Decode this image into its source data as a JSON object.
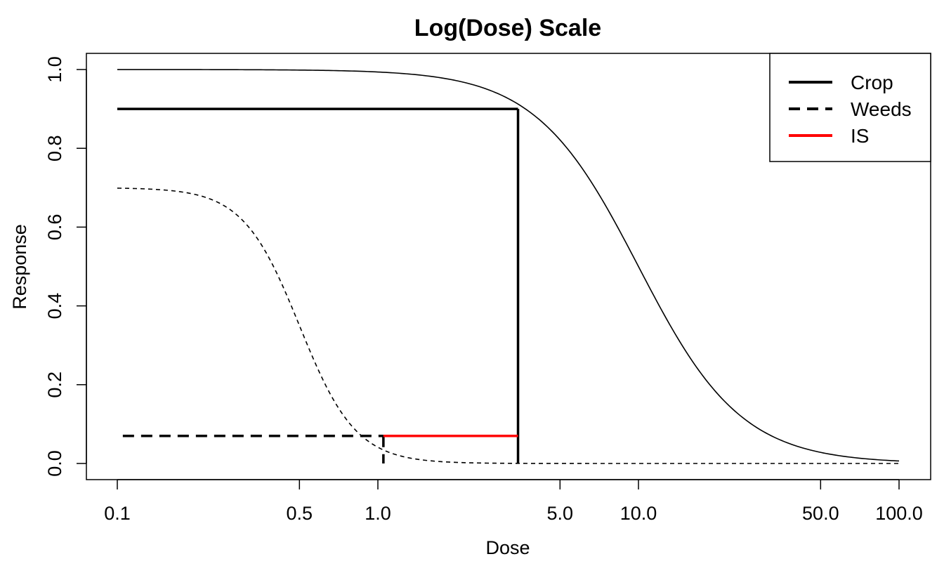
{
  "chart_data": {
    "type": "line",
    "title": "Log(Dose) Scale",
    "xlabel": "Dose",
    "ylabel": "Response",
    "xscale": "log",
    "xlim": [
      0.1,
      100
    ],
    "ylim": [
      0,
      1
    ],
    "xticks": [
      0.1,
      0.5,
      1.0,
      5.0,
      10.0,
      50.0,
      100.0
    ],
    "xtick_labels": [
      "0.1",
      "0.5",
      "1.0",
      "5.0",
      "10.0",
      "50.0",
      "100.0"
    ],
    "yticks": [
      0,
      0.2,
      0.4,
      0.6,
      0.8,
      1.0
    ],
    "ytick_labels": [
      "0.0",
      "0.2",
      "0.4",
      "0.6",
      "0.8",
      "1.0"
    ],
    "grid": false,
    "legend_position": "top-right",
    "legend": [
      {
        "label": "Crop",
        "color": "#000000",
        "style": "solid"
      },
      {
        "label": "Weeds",
        "color": "#000000",
        "style": "dashed"
      },
      {
        "label": "IS",
        "color": "#ff0000",
        "style": "solid"
      }
    ],
    "curves": [
      {
        "name": "Crop",
        "style": "solid",
        "color": "#000000",
        "upper": 1.0,
        "ed50": 10.0,
        "slope": 2.2
      },
      {
        "name": "Weeds",
        "style": "dashed",
        "color": "#000000",
        "upper": 0.7,
        "ed50": 0.5,
        "slope": 4.0
      }
    ],
    "segments": [
      {
        "name": "crop-threshold-horizontal",
        "x": [
          0.1,
          3.45
        ],
        "y": [
          0.9,
          0.9
        ],
        "color": "#000000",
        "style": "solid"
      },
      {
        "name": "crop-threshold-vertical",
        "x": [
          3.45,
          3.45
        ],
        "y": [
          0.9,
          0.0
        ],
        "color": "#000000",
        "style": "solid"
      },
      {
        "name": "weeds-threshold-horizontal",
        "x": [
          0.105,
          1.05
        ],
        "y": [
          0.07,
          0.07
        ],
        "color": "#000000",
        "style": "dashed"
      },
      {
        "name": "weeds-threshold-vertical",
        "x": [
          1.05,
          1.05
        ],
        "y": [
          0.07,
          0.0
        ],
        "color": "#000000",
        "style": "dashed"
      },
      {
        "name": "is-interval",
        "x": [
          1.05,
          3.45
        ],
        "y": [
          0.07,
          0.07
        ],
        "color": "#ff0000",
        "style": "solid"
      }
    ]
  }
}
